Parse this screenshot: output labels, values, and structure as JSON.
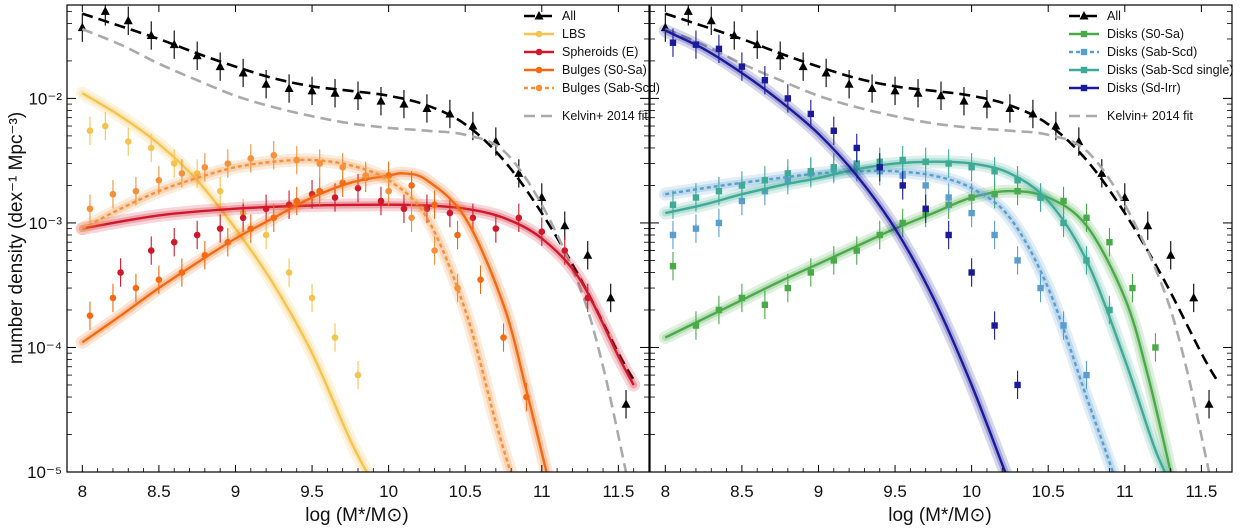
{
  "figure": {
    "ylabel": "number density (dex⁻¹ Mpc⁻³)",
    "xlabel": "log (M*/M⊙)",
    "panels": [
      "left",
      "right"
    ]
  },
  "axes": {
    "x_ticks": [
      8,
      8.5,
      9,
      9.5,
      10,
      10.5,
      11,
      11.5
    ],
    "x_tick_labels": [
      "8",
      "8.5",
      "9",
      "9.5",
      "10",
      "10.5",
      "11",
      "11.5"
    ],
    "y_ticks_log": [
      -5,
      -4,
      -3,
      -2
    ],
    "y_tick_labels": [
      "10⁻⁵",
      "10⁻⁴",
      "10⁻³",
      "10⁻²"
    ],
    "xlim": [
      7.9,
      11.7
    ],
    "ylim_log": [
      -5,
      -1.25
    ]
  },
  "legend_left": {
    "all": "All",
    "lbs": "LBS",
    "sph": "Spheroids (E)",
    "bs0": "Bulges (S0-Sa)",
    "bsab": "Bulges (Sab-Scd)",
    "kelvin": "Kelvin+ 2014 fit"
  },
  "legend_right": {
    "all": "All",
    "ds0": "Disks (S0-Sa)",
    "dsab": "Disks (Sab-Scd)",
    "dsabs": "Disks (Sab-Scd single)",
    "dsd": "Disks (Sd-Irr)",
    "kelvin": "Kelvin+ 2014 fit"
  },
  "colors": {
    "all": "#000000",
    "kelvin": "#aaaaaa",
    "lbs": "#f5c450",
    "spheroids": "#d0182a",
    "bulges_s0": "#f46a12",
    "bulges_sab": "#f5913a",
    "disks_s0": "#4aaa4a",
    "disks_sab": "#5a9ed0",
    "disks_sab_single": "#3faa96",
    "disks_sd": "#1a1a9a"
  },
  "chart_data": [
    {
      "type": "scatter",
      "panel": "left",
      "xlabel": "log (M*/M⊙)",
      "ylabel": "number density (dex⁻¹ Mpc⁻³)",
      "yscale": "log",
      "xlim": [
        7.9,
        11.7
      ],
      "ylim": [
        1e-05,
        0.056
      ],
      "series": [
        {
          "name": "All",
          "kind": "points_line",
          "marker": "triangle",
          "color": "#000000",
          "x": [
            8.0,
            8.15,
            8.3,
            8.45,
            8.6,
            8.75,
            8.9,
            9.05,
            9.2,
            9.35,
            9.5,
            9.65,
            9.8,
            9.95,
            10.1,
            10.25,
            10.4,
            10.55,
            10.7,
            10.85,
            11.0,
            11.15,
            11.3,
            11.45,
            11.55
          ],
          "y": [
            0.037,
            0.05,
            0.042,
            0.032,
            0.027,
            0.022,
            0.018,
            0.016,
            0.013,
            0.012,
            0.0115,
            0.011,
            0.0105,
            0.0095,
            0.009,
            0.0083,
            0.0075,
            0.006,
            0.0045,
            0.0025,
            0.0016,
            0.00095,
            0.00055,
            0.00025,
            3.5e-05
          ]
        },
        {
          "name": "All fit",
          "kind": "line",
          "dash": "dashed",
          "color": "#000000",
          "x": [
            8.0,
            8.25,
            8.5,
            8.75,
            9.0,
            9.25,
            9.5,
            9.75,
            10.0,
            10.25,
            10.5,
            10.75,
            11.0,
            11.25,
            11.5,
            11.6
          ],
          "y": [
            0.048,
            0.038,
            0.03,
            0.023,
            0.018,
            0.0145,
            0.0125,
            0.0115,
            0.0105,
            0.0088,
            0.0062,
            0.0032,
            0.0012,
            0.00036,
            9e-05,
            5.5e-05
          ]
        },
        {
          "name": "Kelvin+ 2014 fit",
          "kind": "line",
          "dash": "dashed",
          "color": "#aaaaaa",
          "x": [
            8.0,
            8.25,
            8.5,
            8.75,
            9.0,
            9.25,
            9.5,
            9.75,
            10.0,
            10.25,
            10.5,
            10.75,
            11.0,
            11.25,
            11.4,
            11.55
          ],
          "y": [
            0.036,
            0.027,
            0.019,
            0.014,
            0.0105,
            0.0085,
            0.0072,
            0.0063,
            0.0058,
            0.0055,
            0.0051,
            0.0038,
            0.0014,
            0.0003,
            7e-05,
            1e-05
          ]
        },
        {
          "name": "LBS",
          "kind": "points_line",
          "marker": "circle",
          "color": "#f5c450",
          "x": [
            8.05,
            8.15,
            8.3,
            8.45,
            8.6,
            8.75,
            8.9,
            9.05,
            9.2,
            9.35,
            9.5,
            9.65,
            9.8
          ],
          "y": [
            0.0055,
            0.006,
            0.0045,
            0.004,
            0.003,
            0.0025,
            0.0018,
            0.0012,
            0.0008,
            0.0004,
            0.00025,
            0.00012,
            6e-05
          ],
          "fit_x": [
            8.0,
            8.25,
            8.5,
            8.75,
            9.0,
            9.25,
            9.5,
            9.75,
            9.9
          ],
          "fit_y": [
            0.011,
            0.0072,
            0.0043,
            0.0022,
            0.0009,
            0.00032,
            9e-05,
            1.8e-05,
            8e-06
          ]
        },
        {
          "name": "Spheroids (E)",
          "kind": "points_line",
          "marker": "circle",
          "color": "#d0182a",
          "x": [
            8.25,
            8.45,
            8.6,
            8.75,
            8.9,
            9.05,
            9.2,
            9.35,
            9.5,
            9.65,
            9.8,
            9.95,
            10.1,
            10.25,
            10.4,
            10.55,
            10.7,
            10.85,
            11.0,
            11.15,
            11.3
          ],
          "y": [
            0.0004,
            0.0006,
            0.0007,
            0.0008,
            0.0009,
            0.0011,
            0.0013,
            0.0014,
            0.0017,
            0.0016,
            0.0019,
            0.0015,
            0.0013,
            0.0013,
            0.0012,
            0.0011,
            0.0009,
            0.0011,
            0.00085,
            0.0006,
            0.00025
          ],
          "fit_x": [
            8.0,
            8.5,
            9.0,
            9.5,
            10.0,
            10.25,
            10.5,
            10.75,
            11.0,
            11.25,
            11.5,
            11.6
          ],
          "fit_y": [
            0.0009,
            0.00115,
            0.0013,
            0.00138,
            0.0014,
            0.00138,
            0.0013,
            0.0011,
            0.00075,
            0.00035,
            8.5e-05,
            5e-05
          ]
        },
        {
          "name": "Bulges (S0-Sa)",
          "kind": "points_line",
          "marker": "circle",
          "color": "#f46a12",
          "x": [
            8.05,
            8.2,
            8.35,
            8.5,
            8.65,
            8.8,
            8.95,
            9.1,
            9.25,
            9.4,
            9.55,
            9.7,
            9.85,
            10.0,
            10.15,
            10.3,
            10.45,
            10.6,
            10.75,
            10.9
          ],
          "y": [
            0.00018,
            0.00025,
            0.0003,
            0.00035,
            0.0004,
            0.00055,
            0.0007,
            0.0009,
            0.0011,
            0.0015,
            0.0018,
            0.0021,
            0.0023,
            0.0024,
            0.002,
            0.0014,
            0.0008,
            0.00035,
            0.00012,
            4e-05
          ],
          "fit_x": [
            8.0,
            8.25,
            8.5,
            8.75,
            9.0,
            9.25,
            9.5,
            9.75,
            10.0,
            10.1,
            10.25,
            10.5,
            10.75,
            10.9,
            11.05
          ],
          "fit_y": [
            0.00011,
            0.00018,
            0.0003,
            0.00048,
            0.00075,
            0.0011,
            0.0016,
            0.0021,
            0.0024,
            0.0025,
            0.0022,
            0.0011,
            0.00022,
            4.5e-05,
            8e-06
          ]
        },
        {
          "name": "Bulges (Sab-Scd)",
          "kind": "points_line",
          "dash": "dotted",
          "marker": "circle",
          "color": "#f5913a",
          "x": [
            8.05,
            8.2,
            8.35,
            8.5,
            8.65,
            8.8,
            8.95,
            9.1,
            9.25,
            9.4,
            9.55,
            9.7,
            9.85,
            10.0,
            10.15,
            10.3,
            10.45
          ],
          "y": [
            0.0013,
            0.0017,
            0.0018,
            0.0022,
            0.0025,
            0.0028,
            0.003,
            0.0033,
            0.0035,
            0.0032,
            0.003,
            0.0028,
            0.0024,
            0.0018,
            0.0011,
            0.0006,
            0.0003
          ],
          "fit_x": [
            8.0,
            8.25,
            8.5,
            8.75,
            9.0,
            9.25,
            9.5,
            9.75,
            10.0,
            10.25,
            10.5,
            10.7,
            10.85
          ],
          "fit_y": [
            0.0009,
            0.0013,
            0.0018,
            0.0023,
            0.0028,
            0.0031,
            0.0032,
            0.0029,
            0.0022,
            0.0011,
            0.0002,
            2.5e-05,
            6e-06
          ]
        }
      ]
    },
    {
      "type": "scatter",
      "panel": "right",
      "xlabel": "log (M*/M⊙)",
      "ylabel": "number density (dex⁻¹ Mpc⁻³)",
      "yscale": "log",
      "xlim": [
        7.9,
        11.7
      ],
      "ylim": [
        1e-05,
        0.056
      ],
      "series": [
        {
          "name": "All",
          "kind": "points_line",
          "marker": "triangle",
          "color": "#000000",
          "x": [
            8.0,
            8.15,
            8.3,
            8.45,
            8.6,
            8.75,
            8.9,
            9.05,
            9.2,
            9.35,
            9.5,
            9.65,
            9.8,
            9.95,
            10.1,
            10.25,
            10.4,
            10.55,
            10.7,
            10.85,
            11.0,
            11.15,
            11.3,
            11.45,
            11.55
          ],
          "y": [
            0.037,
            0.05,
            0.042,
            0.032,
            0.027,
            0.022,
            0.018,
            0.016,
            0.013,
            0.012,
            0.0115,
            0.011,
            0.0105,
            0.0095,
            0.009,
            0.0083,
            0.0075,
            0.006,
            0.0045,
            0.0025,
            0.0016,
            0.00095,
            0.00055,
            0.00025,
            3.5e-05
          ]
        },
        {
          "name": "All fit",
          "kind": "line",
          "dash": "dashed",
          "color": "#000000",
          "x": [
            8.0,
            8.25,
            8.5,
            8.75,
            9.0,
            9.25,
            9.5,
            9.75,
            10.0,
            10.25,
            10.5,
            10.75,
            11.0,
            11.25,
            11.5,
            11.6
          ],
          "y": [
            0.048,
            0.038,
            0.03,
            0.023,
            0.018,
            0.0145,
            0.0125,
            0.0115,
            0.0105,
            0.0088,
            0.0062,
            0.0032,
            0.0012,
            0.00036,
            9e-05,
            5.5e-05
          ]
        },
        {
          "name": "Kelvin+ 2014 fit",
          "kind": "line",
          "dash": "dashed",
          "color": "#aaaaaa",
          "x": [
            8.0,
            8.25,
            8.5,
            8.75,
            9.0,
            9.25,
            9.5,
            9.75,
            10.0,
            10.25,
            10.5,
            10.75,
            11.0,
            11.25,
            11.4,
            11.55
          ],
          "y": [
            0.036,
            0.027,
            0.019,
            0.014,
            0.0105,
            0.0085,
            0.0072,
            0.0063,
            0.0058,
            0.0055,
            0.0051,
            0.0038,
            0.0014,
            0.0003,
            7e-05,
            1e-05
          ]
        },
        {
          "name": "Disks (S0-Sa)",
          "kind": "points_line",
          "marker": "square",
          "color": "#4aaa4a",
          "x": [
            8.05,
            8.2,
            8.35,
            8.5,
            8.65,
            8.8,
            8.95,
            9.1,
            9.25,
            9.4,
            9.55,
            9.7,
            9.85,
            10.0,
            10.15,
            10.3,
            10.45,
            10.6,
            10.75,
            10.9,
            11.05,
            11.2
          ],
          "y": [
            0.00045,
            0.00015,
            0.0002,
            0.00025,
            0.00022,
            0.0003,
            0.0004,
            0.0005,
            0.0006,
            0.0008,
            0.001,
            0.0012,
            0.0014,
            0.0016,
            0.0017,
            0.0018,
            0.0016,
            0.0015,
            0.0011,
            0.0007,
            0.0003,
            0.0001
          ],
          "fit_x": [
            8.0,
            8.25,
            8.5,
            8.75,
            9.0,
            9.25,
            9.5,
            9.75,
            10.0,
            10.25,
            10.5,
            10.75,
            11.0,
            11.15,
            11.3
          ],
          "fit_y": [
            0.00012,
            0.00017,
            0.00024,
            0.00034,
            0.00047,
            0.00065,
            0.0009,
            0.0012,
            0.0016,
            0.0018,
            0.0016,
            0.00095,
            0.00025,
            6e-05,
            1e-05
          ]
        },
        {
          "name": "Disks (Sab-Scd)",
          "kind": "points_line",
          "dash": "dotted",
          "marker": "square",
          "color": "#5a9ed0",
          "x": [
            8.05,
            8.2,
            8.35,
            8.5,
            8.65,
            8.8,
            8.95,
            9.1,
            9.25,
            9.4,
            9.55,
            9.7,
            9.85,
            10.0,
            10.15,
            10.3,
            10.45,
            10.6,
            10.75
          ],
          "y": [
            0.0008,
            0.0009,
            0.001,
            0.0015,
            0.0018,
            0.0022,
            0.0025,
            0.0027,
            0.0028,
            0.0026,
            0.0024,
            0.002,
            0.0016,
            0.0012,
            0.0008,
            0.0005,
            0.0003,
            0.00015,
            6e-05
          ],
          "fit_x": [
            8.0,
            8.25,
            8.5,
            8.75,
            9.0,
            9.25,
            9.5,
            9.75,
            10.0,
            10.25,
            10.5,
            10.75,
            10.9,
            11.0
          ],
          "fit_y": [
            0.0017,
            0.0019,
            0.0021,
            0.0023,
            0.0025,
            0.0026,
            0.0026,
            0.0024,
            0.0019,
            0.0011,
            0.0003,
            4e-05,
            1.2e-05,
            5e-06
          ]
        },
        {
          "name": "Disks (Sab-Scd single)",
          "kind": "points_line",
          "marker": "square",
          "color": "#3faa96",
          "x": [
            8.05,
            8.2,
            8.35,
            8.5,
            8.65,
            8.8,
            8.95,
            9.1,
            9.25,
            9.4,
            9.55,
            9.7,
            9.85,
            10.0,
            10.15,
            10.3,
            10.45,
            10.6,
            10.75,
            10.9
          ],
          "y": [
            0.0014,
            0.0016,
            0.0018,
            0.002,
            0.0022,
            0.0025,
            0.0026,
            0.0028,
            0.003,
            0.0031,
            0.0032,
            0.0031,
            0.003,
            0.0028,
            0.0026,
            0.0022,
            0.0016,
            0.001,
            0.0005,
            0.0002
          ],
          "fit_x": [
            8.0,
            8.25,
            8.5,
            8.75,
            9.0,
            9.25,
            9.5,
            9.75,
            10.0,
            10.25,
            10.5,
            10.75,
            11.0,
            11.2,
            11.35
          ],
          "fit_y": [
            0.0012,
            0.0014,
            0.0017,
            0.002,
            0.0023,
            0.0027,
            0.003,
            0.0031,
            0.003,
            0.0025,
            0.0015,
            0.0005,
            8e-05,
            1.5e-05,
            6e-06
          ]
        },
        {
          "name": "Disks (Sd-Irr)",
          "kind": "points_line",
          "marker": "square",
          "color": "#1a1a9a",
          "x": [
            8.05,
            8.2,
            8.35,
            8.5,
            8.65,
            8.8,
            8.95,
            9.1,
            9.25,
            9.4,
            9.55,
            9.7,
            9.85,
            10.0,
            10.15,
            10.3
          ],
          "y": [
            0.028,
            0.027,
            0.025,
            0.018,
            0.014,
            0.01,
            0.0075,
            0.0055,
            0.004,
            0.0028,
            0.002,
            0.0013,
            0.0008,
            0.0004,
            0.00015,
            5e-05
          ],
          "fit_x": [
            8.0,
            8.25,
            8.5,
            8.75,
            9.0,
            9.25,
            9.5,
            9.75,
            10.0,
            10.25,
            10.4
          ],
          "fit_y": [
            0.035,
            0.025,
            0.016,
            0.0095,
            0.0052,
            0.0024,
            0.0009,
            0.00025,
            5e-05,
            8e-06,
            3e-06
          ]
        }
      ]
    }
  ]
}
